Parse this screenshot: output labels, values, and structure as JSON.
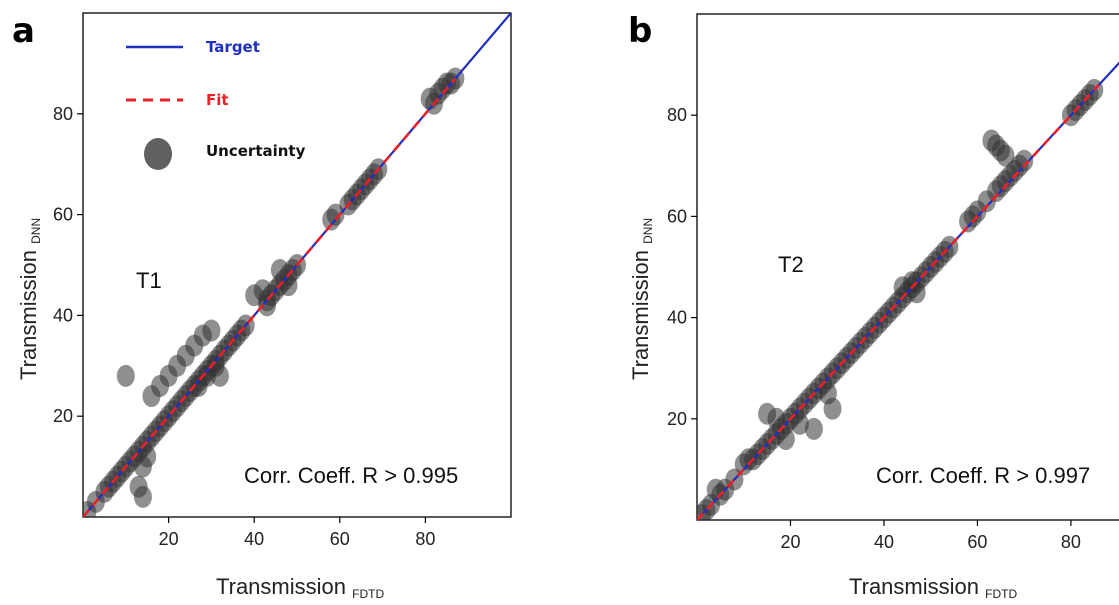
{
  "figure": {
    "panels": [
      {
        "letter": "a",
        "annotation": "T1",
        "corr_text": "Corr. Coeff. R > 0.995",
        "xlabel": "Transmission",
        "xlabel_sub": "FDTD",
        "ylabel": "Transmission",
        "ylabel_sub": "DNN",
        "legend": [
          {
            "label": "Target",
            "color": "#1f2fbf",
            "style": "solid-line"
          },
          {
            "label": "Fit",
            "color": "#e8202a",
            "style": "dashed-line"
          },
          {
            "label": "Uncertainty",
            "color": "#444444",
            "style": "marker"
          }
        ]
      },
      {
        "letter": "b",
        "annotation": "T2",
        "corr_text": "Corr. Coeff. R > 0.997",
        "xlabel": "Transmission",
        "xlabel_sub": "FDTD",
        "ylabel": "Transmission",
        "ylabel_sub": "DNN",
        "legend": []
      }
    ]
  },
  "chart_data": [
    {
      "type": "scatter",
      "title": "",
      "xlabel": "Transmission FDTD",
      "ylabel": "Transmission DNN",
      "xlim": [
        0,
        100
      ],
      "ylim": [
        0,
        100
      ],
      "x_ticks": [
        20,
        40,
        60,
        80
      ],
      "y_ticks": [
        20,
        40,
        60,
        80
      ],
      "grid": false,
      "legend_position": "top-left",
      "series": [
        {
          "name": "Target",
          "kind": "line",
          "color": "#1f2fbf",
          "x": [
            0,
            100
          ],
          "y": [
            0,
            100
          ]
        },
        {
          "name": "Fit",
          "kind": "dashed-line",
          "color": "#e8202a",
          "x": [
            0,
            87
          ],
          "y": [
            0,
            87
          ]
        },
        {
          "name": "Uncertainty",
          "kind": "marker",
          "color": "#333333",
          "x": [
            1,
            3,
            5,
            6,
            7,
            8,
            9,
            10,
            11,
            12,
            13,
            14,
            15,
            16,
            17,
            18,
            19,
            20,
            21,
            22,
            23,
            24,
            25,
            26,
            27,
            28,
            29,
            30,
            31,
            32,
            33,
            34,
            35,
            36,
            37,
            38,
            13,
            14,
            15,
            14,
            10,
            16,
            18,
            20,
            22,
            24,
            26,
            28,
            30,
            27,
            29,
            31,
            32,
            40,
            42,
            43,
            44,
            45,
            46,
            47,
            48,
            49,
            50,
            46,
            43,
            48,
            58,
            59,
            62,
            63,
            64,
            65,
            66,
            67,
            68,
            69,
            81,
            82,
            83,
            84,
            85,
            86,
            87
          ],
          "y": [
            1,
            3,
            5,
            6,
            7,
            8,
            9,
            10,
            11,
            12,
            13,
            14,
            15,
            16,
            17,
            18,
            19,
            20,
            21,
            22,
            23,
            24,
            25,
            26,
            27,
            28,
            29,
            30,
            31,
            32,
            33,
            34,
            35,
            36,
            37,
            38,
            6,
            10,
            12,
            4,
            28,
            24,
            26,
            28,
            30,
            32,
            34,
            36,
            37,
            26,
            28,
            30,
            28,
            44,
            45,
            43,
            44,
            45,
            46,
            47,
            48,
            49,
            50,
            49,
            42,
            46,
            59,
            60,
            62,
            63,
            64,
            65,
            66,
            67,
            68,
            69,
            83,
            82,
            84,
            85,
            86,
            86,
            87
          ]
        }
      ]
    },
    {
      "type": "scatter",
      "title": "",
      "xlabel": "Transmission FDTD",
      "ylabel": "Transmission DNN",
      "xlim": [
        0,
        92
      ],
      "ylim": [
        0,
        100
      ],
      "x_ticks": [
        20,
        40,
        60,
        80
      ],
      "y_ticks": [
        20,
        40,
        60,
        80
      ],
      "grid": false,
      "series": [
        {
          "name": "Target",
          "kind": "line",
          "color": "#1f2fbf",
          "x": [
            0,
            92
          ],
          "y": [
            0,
            92
          ]
        },
        {
          "name": "Fit",
          "kind": "dashed-line",
          "color": "#e8202a",
          "x": [
            0,
            86
          ],
          "y": [
            0,
            86
          ]
        },
        {
          "name": "Uncertainty",
          "kind": "marker",
          "color": "#333333",
          "x": [
            1,
            2,
            3,
            4,
            5,
            6,
            8,
            10,
            11,
            12,
            13,
            14,
            15,
            16,
            17,
            18,
            19,
            20,
            21,
            22,
            23,
            24,
            25,
            26,
            27,
            28,
            29,
            30,
            31,
            32,
            33,
            34,
            35,
            36,
            37,
            38,
            39,
            40,
            41,
            42,
            43,
            44,
            45,
            46,
            47,
            48,
            49,
            50,
            51,
            52,
            53,
            54,
            15,
            17,
            19,
            22,
            25,
            29,
            28,
            44,
            46,
            47,
            58,
            59,
            60,
            62,
            64,
            65,
            66,
            67,
            68,
            69,
            70,
            63,
            64,
            65,
            66,
            80,
            81,
            82,
            83,
            84,
            85
          ],
          "y": [
            1,
            2,
            3,
            6,
            5,
            6,
            8,
            11,
            12,
            12,
            13,
            14,
            15,
            16,
            17,
            18,
            19,
            20,
            21,
            22,
            23,
            24,
            25,
            26,
            27,
            28,
            29,
            30,
            31,
            32,
            33,
            34,
            35,
            36,
            37,
            38,
            39,
            40,
            41,
            42,
            43,
            44,
            45,
            46,
            47,
            48,
            49,
            50,
            51,
            52,
            53,
            54,
            21,
            20,
            16,
            19,
            18,
            22,
            25,
            46,
            47,
            45,
            59,
            60,
            61,
            63,
            65,
            66,
            67,
            68,
            69,
            70,
            71,
            75,
            74,
            73,
            72,
            80,
            81,
            82,
            83,
            84,
            85
          ]
        }
      ]
    }
  ]
}
